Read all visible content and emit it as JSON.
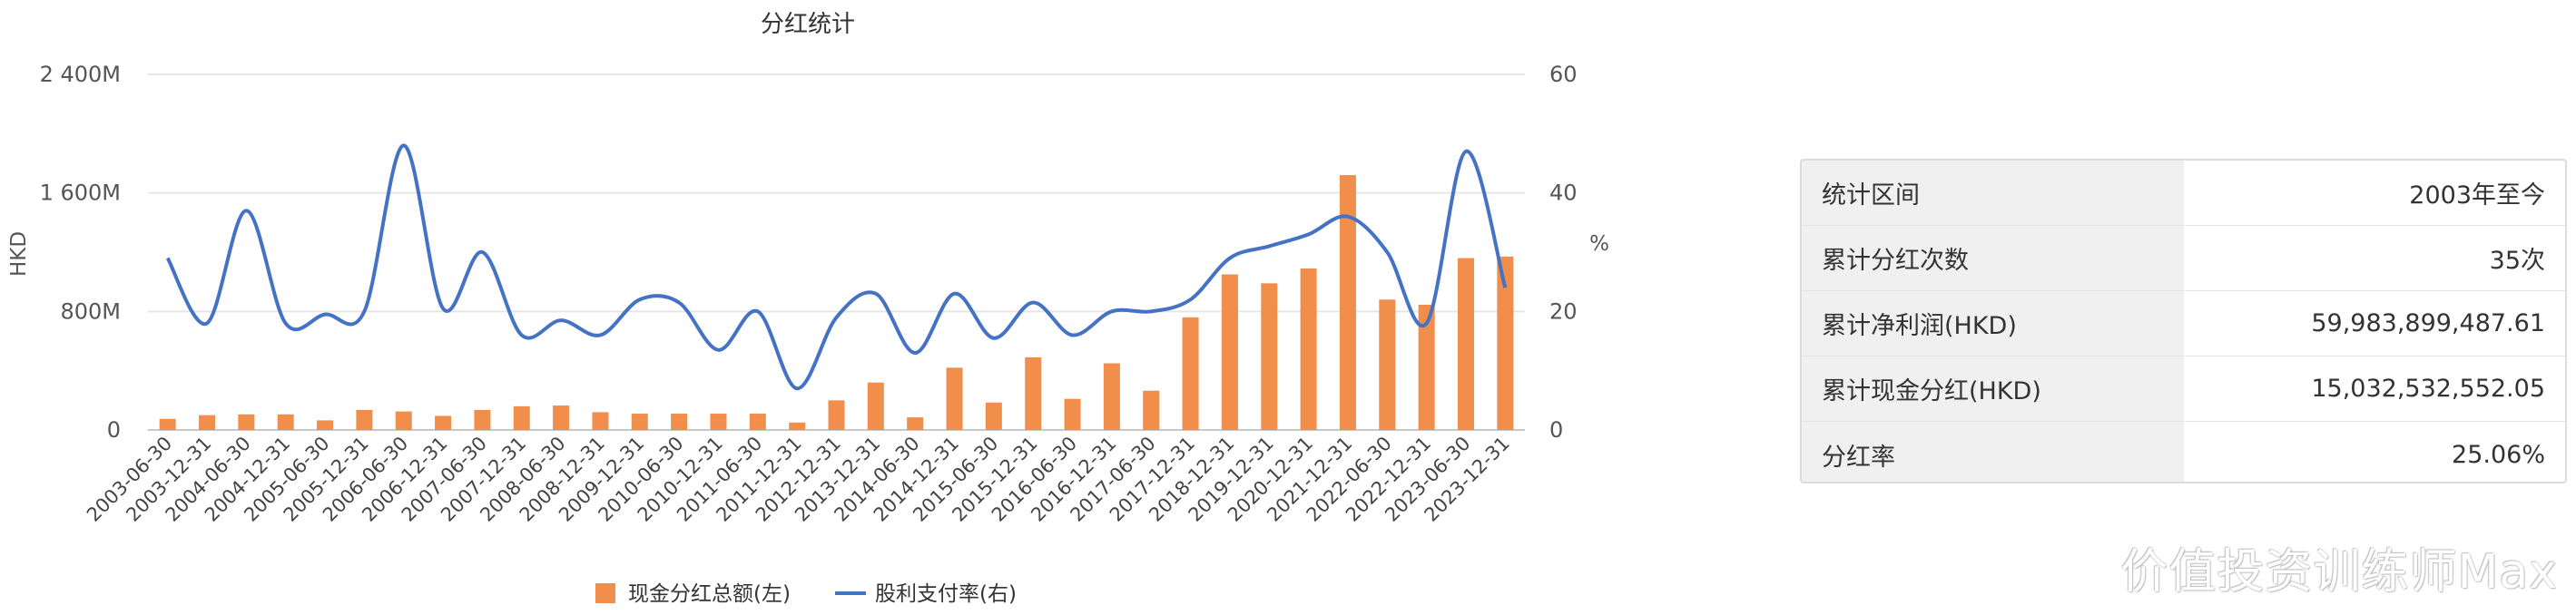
{
  "chart_data": {
    "type": "bar+line",
    "title": "分红统计",
    "categories": [
      "2003-06-30",
      "2003-12-31",
      "2004-06-30",
      "2004-12-31",
      "2005-06-30",
      "2005-12-31",
      "2006-06-30",
      "2006-12-31",
      "2007-06-30",
      "2007-12-31",
      "2008-06-30",
      "2008-12-31",
      "2009-12-31",
      "2010-06-30",
      "2010-12-31",
      "2011-06-30",
      "2011-12-31",
      "2012-12-31",
      "2013-12-31",
      "2014-06-30",
      "2014-12-31",
      "2015-06-30",
      "2015-12-31",
      "2016-06-30",
      "2016-12-31",
      "2017-06-30",
      "2017-12-31",
      "2018-12-31",
      "2019-12-31",
      "2020-12-31",
      "2021-12-31",
      "2022-06-30",
      "2022-12-31",
      "2023-06-30",
      "2023-12-31"
    ],
    "ylabel_left": "HKD",
    "ylabel_right": "%",
    "y_left_ticks": [
      "0",
      "800M",
      "1 600M",
      "2 400M"
    ],
    "y_left_lim": [
      0,
      2400
    ],
    "y_right_ticks": [
      "0",
      "20",
      "40",
      "60"
    ],
    "y_right_lim": [
      0,
      60
    ],
    "grid": true,
    "legend_position": "bottom",
    "series": [
      {
        "name": "现金分红总额(左)",
        "axis": "left",
        "type": "bar",
        "color": "#f28e4c",
        "values": [
          75,
          100,
          105,
          105,
          65,
          135,
          125,
          95,
          135,
          160,
          165,
          120,
          110,
          110,
          110,
          110,
          50,
          200,
          320,
          85,
          420,
          185,
          490,
          210,
          450,
          265,
          760,
          1050,
          990,
          1090,
          1720,
          880,
          845,
          1160,
          1170
        ]
      },
      {
        "name": "股利支付率(右)",
        "axis": "right",
        "type": "line",
        "color": "#4472c4",
        "values": [
          29,
          18,
          37,
          18,
          19.5,
          20,
          48,
          20.5,
          30,
          16,
          18.5,
          16,
          22,
          21.5,
          13.5,
          20,
          7,
          19,
          23,
          13,
          23,
          15.5,
          21.5,
          16,
          20,
          20,
          22,
          29,
          31,
          33,
          36,
          30,
          18,
          47,
          24
        ]
      }
    ]
  },
  "summary": {
    "rows": [
      {
        "label": "统计区间",
        "value": "2003年至今"
      },
      {
        "label": "累计分红次数",
        "value": "35次"
      },
      {
        "label": "累计净利润(HKD)",
        "value": "59,983,899,487.61"
      },
      {
        "label": "累计现金分红(HKD)",
        "value": "15,032,532,552.05"
      },
      {
        "label": "分红率",
        "value": "25.06%"
      }
    ]
  },
  "watermark": "价值投资训练师Max"
}
